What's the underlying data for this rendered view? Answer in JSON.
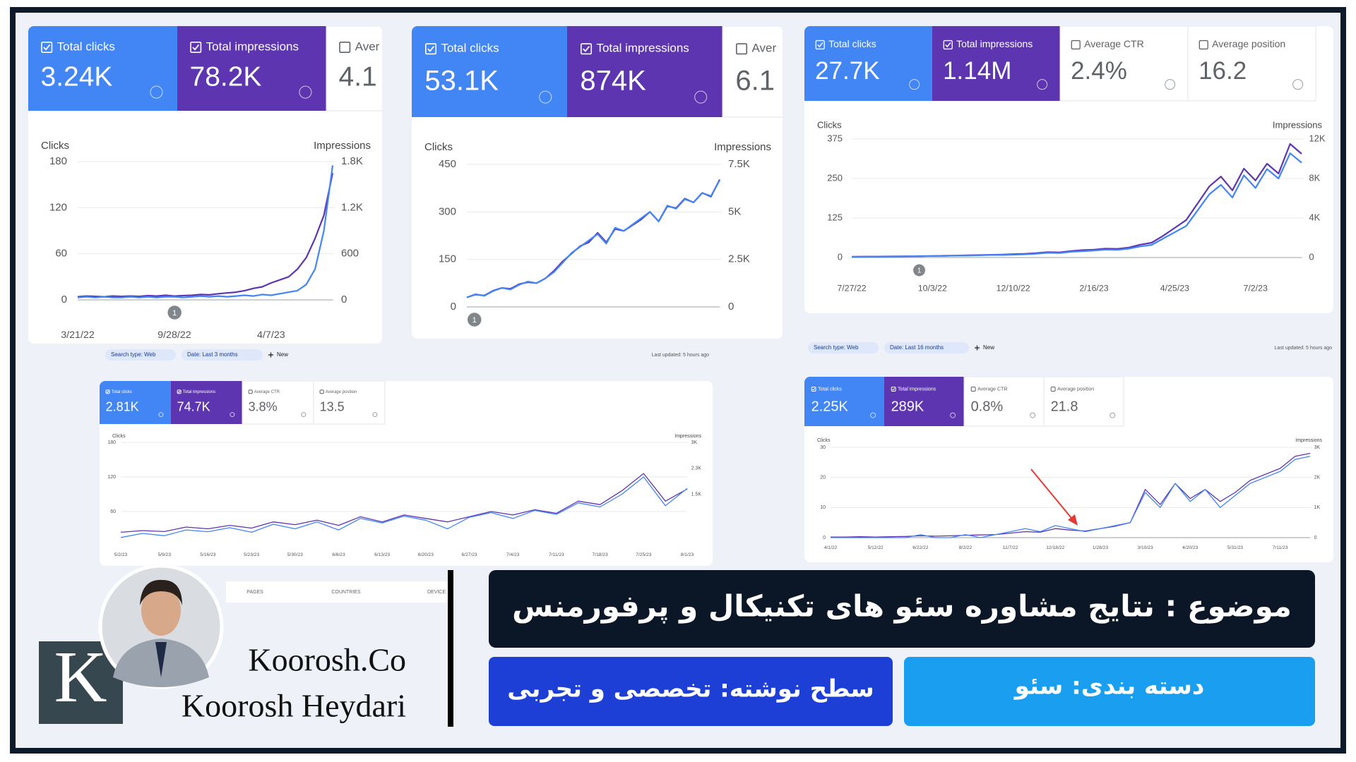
{
  "chart_data": [
    {
      "type": "line",
      "metrics": [
        {
          "label": "Total clicks",
          "value": "3.24K"
        },
        {
          "label": "Total impressions",
          "value": "78.2K"
        },
        {
          "label": "Aver",
          "value": "4.1"
        }
      ],
      "ylabel": "Clicks",
      "y2label": "Impressions",
      "ylim": [
        0,
        180
      ],
      "yticks": [
        0,
        60,
        120,
        180
      ],
      "y2lim": [
        0,
        1800
      ],
      "y2ticks": [
        0,
        600,
        {
          "value": 1200,
          "label": "1.2K"
        },
        {
          "value": 1800,
          "label": "1.8K"
        }
      ],
      "categories": [
        "3/21/22",
        null,
        null,
        null,
        null,
        null,
        null,
        null,
        null,
        null,
        null,
        "9/28/22",
        null,
        null,
        null,
        null,
        null,
        null,
        null,
        null,
        null,
        null,
        "4/7/23",
        null,
        null,
        null,
        null,
        null,
        null,
        null
      ],
      "annotation": "1",
      "series": [
        {
          "color": "#5e35b1",
          "axis": "y2",
          "values": [
            40,
            50,
            45,
            40,
            50,
            45,
            50,
            45,
            55,
            50,
            60,
            50,
            55,
            60,
            70,
            65,
            80,
            90,
            100,
            120,
            150,
            170,
            220,
            260,
            300,
            400,
            550,
            800,
            1100,
            1650
          ]
        },
        {
          "color": "#4285f4",
          "values": [
            3,
            4,
            3,
            4,
            3,
            3,
            4,
            3,
            4,
            3,
            4,
            4,
            3,
            4,
            5,
            4,
            5,
            4,
            5,
            6,
            5,
            7,
            6,
            8,
            10,
            12,
            20,
            40,
            90,
            175
          ]
        }
      ]
    },
    {
      "type": "line",
      "metrics": [
        {
          "label": "Total clicks",
          "value": "53.1K"
        },
        {
          "label": "Total impressions",
          "value": "874K"
        },
        {
          "label": "Aver",
          "value": "6.1"
        }
      ],
      "ylabel": "Clicks",
      "y2label": "Impressions",
      "ylim": [
        0,
        450
      ],
      "yticks": [
        0,
        150,
        300,
        450
      ],
      "y2lim": [
        0,
        7500
      ],
      "y2ticks": [
        0,
        {
          "value": 2500,
          "label": "2.5K"
        },
        {
          "value": 5000,
          "label": "5K"
        },
        {
          "value": 7500,
          "label": "7.5K"
        }
      ],
      "annotation": "1",
      "series": [
        {
          "color": "#5e35b1",
          "axis": "y2",
          "values": [
            500,
            650,
            600,
            850,
            1000,
            950,
            1200,
            1300,
            1250,
            1500,
            1900,
            2400,
            2800,
            3200,
            3400,
            3900,
            3400,
            4100,
            4000,
            4300,
            4600,
            5000,
            4500,
            5300,
            5200,
            5700,
            5500,
            6000,
            5800,
            6700
          ]
        },
        {
          "color": "#4285f4",
          "values": [
            30,
            40,
            35,
            50,
            60,
            55,
            70,
            80,
            75,
            90,
            110,
            140,
            170,
            190,
            210,
            230,
            200,
            250,
            240,
            260,
            280,
            300,
            270,
            320,
            310,
            340,
            330,
            360,
            350,
            400
          ]
        }
      ]
    },
    {
      "type": "line",
      "metrics": [
        {
          "label": "Total clicks",
          "value": "27.7K"
        },
        {
          "label": "Total impressions",
          "value": "1.14M"
        },
        {
          "label": "Average CTR",
          "value": "2.4%"
        },
        {
          "label": "Average position",
          "value": "16.2"
        }
      ],
      "ylabel": "Clicks",
      "y2label": "Impressions",
      "ylim": [
        0,
        375
      ],
      "yticks": [
        0,
        125,
        250,
        375
      ],
      "y2lim": [
        0,
        12000
      ],
      "y2ticks": [
        0,
        {
          "value": 4000,
          "label": "4K"
        },
        {
          "value": 8000,
          "label": "8K"
        },
        {
          "value": 12000,
          "label": "12K"
        }
      ],
      "categories": [
        "7/27/22",
        null,
        null,
        null,
        null,
        null,
        null,
        "10/3/22",
        null,
        null,
        null,
        null,
        null,
        null,
        "12/10/22",
        null,
        null,
        null,
        null,
        null,
        null,
        "2/16/23",
        null,
        null,
        null,
        null,
        null,
        null,
        "4/25/23",
        null,
        null,
        null,
        null,
        null,
        null,
        "7/2/23",
        null,
        null,
        null,
        null
      ],
      "annotation": "1",
      "series": [
        {
          "color": "#5e35b1",
          "axis": "y2",
          "values": [
            80,
            90,
            100,
            110,
            120,
            130,
            140,
            160,
            180,
            200,
            220,
            250,
            280,
            300,
            340,
            380,
            450,
            550,
            520,
            650,
            750,
            800,
            900,
            880,
            1000,
            1300,
            1500,
            2200,
            3000,
            3800,
            5500,
            7200,
            8200,
            6800,
            9000,
            7800,
            9500,
            8500,
            11500,
            10500
          ]
        },
        {
          "color": "#4285f4",
          "values": [
            2,
            2,
            3,
            3,
            3,
            4,
            4,
            5,
            5,
            6,
            6,
            7,
            8,
            8,
            9,
            10,
            12,
            15,
            14,
            18,
            20,
            22,
            25,
            24,
            28,
            35,
            40,
            60,
            80,
            100,
            150,
            200,
            230,
            190,
            260,
            220,
            280,
            250,
            330,
            300
          ]
        }
      ]
    },
    {
      "type": "line",
      "filters": [
        "Search type: Web",
        "Date: Last 3 months"
      ],
      "new_button": "New",
      "last_updated": "Last updated: 5 hours ago",
      "tabs": [
        "PAGES",
        "COUNTRIES",
        "DEVICE"
      ],
      "metrics": [
        {
          "label": "Total clicks",
          "value": "2.81K"
        },
        {
          "label": "Total impressions",
          "value": "74.7K"
        },
        {
          "label": "Average CTR",
          "value": "3.8%"
        },
        {
          "label": "Average position",
          "value": "13.5"
        }
      ],
      "ylabel": "Clicks",
      "y2label": "Impressions",
      "ylim": [
        0,
        180
      ],
      "yticks": [
        60,
        120,
        180
      ],
      "y2lim": [
        0,
        3000
      ],
      "y2ticks": [
        {
          "value": 1500,
          "label": "1.5K"
        },
        {
          "value": 2250,
          "label": "2.3K"
        },
        {
          "value": 3000,
          "label": "3K"
        }
      ],
      "categories": [
        "5/2/23",
        null,
        "5/9/23",
        null,
        "5/16/23",
        null,
        "5/23/23",
        null,
        "5/30/23",
        null,
        "6/6/23",
        null,
        "6/13/23",
        null,
        "6/20/23",
        null,
        "6/27/23",
        null,
        "7/4/23",
        null,
        "7/11/23",
        null,
        "7/18/23",
        null,
        "7/25/23",
        null,
        "8/1/23"
      ],
      "series": [
        {
          "color": "#5e35b1",
          "axis": "y2",
          "values": [
            400,
            450,
            420,
            550,
            500,
            600,
            520,
            700,
            620,
            750,
            600,
            850,
            700,
            900,
            800,
            700,
            850,
            1000,
            900,
            1050,
            950,
            1300,
            1200,
            1600,
            2100,
            1300,
            1650
          ]
        },
        {
          "color": "#4285f4",
          "values": [
            15,
            22,
            18,
            28,
            25,
            32,
            24,
            38,
            30,
            42,
            28,
            48,
            40,
            52,
            45,
            30,
            50,
            58,
            48,
            62,
            55,
            75,
            68,
            90,
            120,
            70,
            100
          ]
        }
      ]
    },
    {
      "type": "line",
      "filters": [
        "Search type: Web",
        "Date: Last 16 months"
      ],
      "new_button": "New",
      "last_updated": "Last updated: 5 hours ago",
      "metrics": [
        {
          "label": "Total clicks",
          "value": "2.25K"
        },
        {
          "label": "Total impressions",
          "value": "289K"
        },
        {
          "label": "Average CTR",
          "value": "0.8%"
        },
        {
          "label": "Average position",
          "value": "21.8"
        }
      ],
      "ylabel": "Clicks",
      "y2label": "Impressions",
      "ylim": [
        0,
        30
      ],
      "yticks": [
        0,
        10,
        20,
        30
      ],
      "y2lim": [
        0,
        3000
      ],
      "y2ticks": [
        0,
        {
          "value": 1000,
          "label": "1K"
        },
        {
          "value": 2000,
          "label": "2K"
        },
        {
          "value": 3000,
          "label": "3K"
        }
      ],
      "categories": [
        "4/1/22",
        null,
        null,
        "5/12/22",
        null,
        null,
        "6/22/22",
        null,
        null,
        "8/2/22",
        null,
        null,
        "11/7/22",
        null,
        null,
        "12/18/22",
        null,
        null,
        "1/28/23",
        null,
        null,
        "3/10/23",
        null,
        null,
        "4/20/23",
        null,
        null,
        "5/31/23",
        null,
        null,
        "7/11/23",
        null,
        null
      ],
      "series": [
        {
          "color": "#5e35b1",
          "axis": "y2",
          "values": [
            20,
            20,
            30,
            20,
            30,
            40,
            60,
            50,
            60,
            80,
            90,
            100,
            150,
            200,
            180,
            300,
            250,
            220,
            300,
            380,
            500,
            1600,
            1100,
            1800,
            1300,
            1600,
            1200,
            1500,
            1900,
            2100,
            2300,
            2700,
            2800
          ]
        },
        {
          "color": "#4285f4",
          "values": [
            0,
            0,
            0,
            0,
            0,
            0,
            1,
            0,
            0,
            1,
            0,
            1,
            2,
            3,
            2,
            4,
            3,
            2,
            3,
            4,
            5,
            15,
            10,
            18,
            12,
            16,
            10,
            14,
            18,
            20,
            22,
            26,
            27
          ]
        }
      ]
    }
  ],
  "banner": {
    "topic": "موضوع : نتایج مشاوره سئو های تکنیکال و پرفورمنس",
    "level": "سطح نوشته: تخصصی و تجربی",
    "category": "دسته بندی: سئو",
    "logo_letter": "K",
    "brand": "Koorosh.Co",
    "author": "Koorosh Heydari"
  }
}
